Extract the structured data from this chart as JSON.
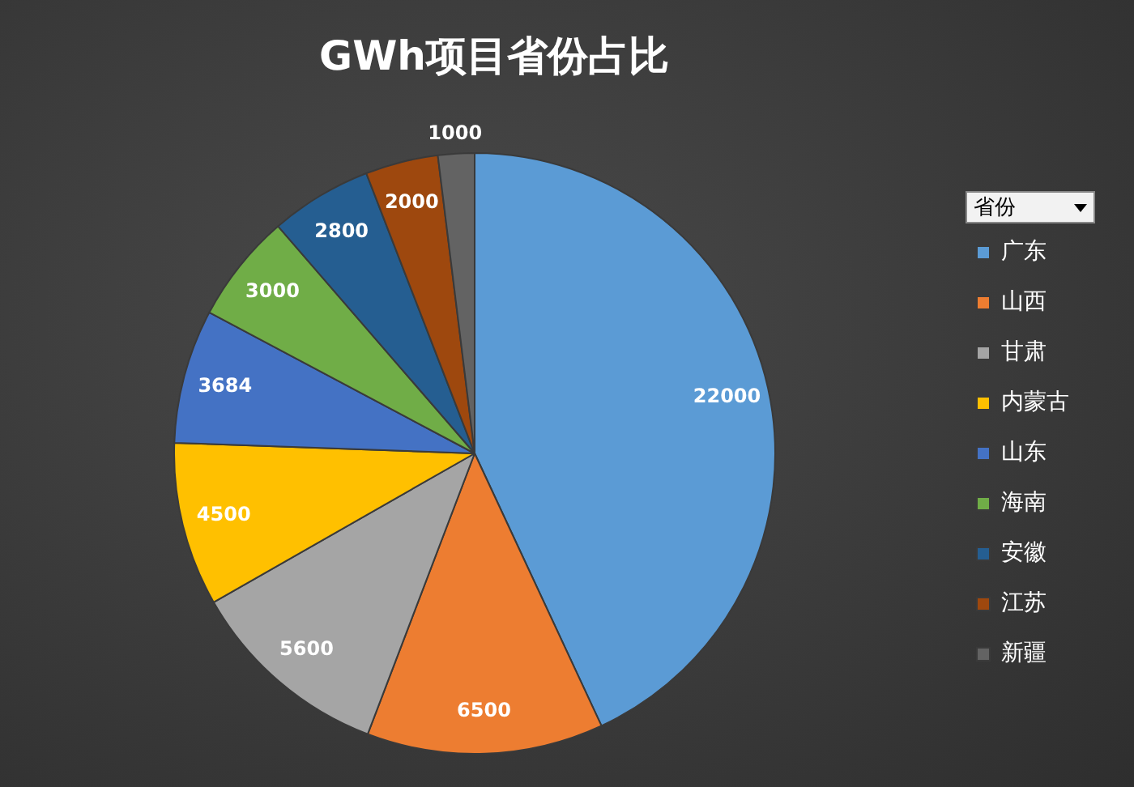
{
  "chart_data": {
    "type": "pie",
    "title": "GWh项目省份占比",
    "legend_title": "省份",
    "legend": "right",
    "data_labels": true,
    "categories": [
      "广东",
      "山西",
      "甘肃",
      "内蒙古",
      "山东",
      "海南",
      "安徽",
      "江苏",
      "新疆"
    ],
    "values": [
      22000,
      6500,
      5600,
      4500,
      3684,
      3000,
      2800,
      2000,
      1000
    ],
    "colors": [
      "#5b9bd5",
      "#ed7d31",
      "#a5a5a5",
      "#ffc000",
      "#4472c4",
      "#70ad47",
      "#255e91",
      "#9e480e",
      "#636363"
    ]
  }
}
